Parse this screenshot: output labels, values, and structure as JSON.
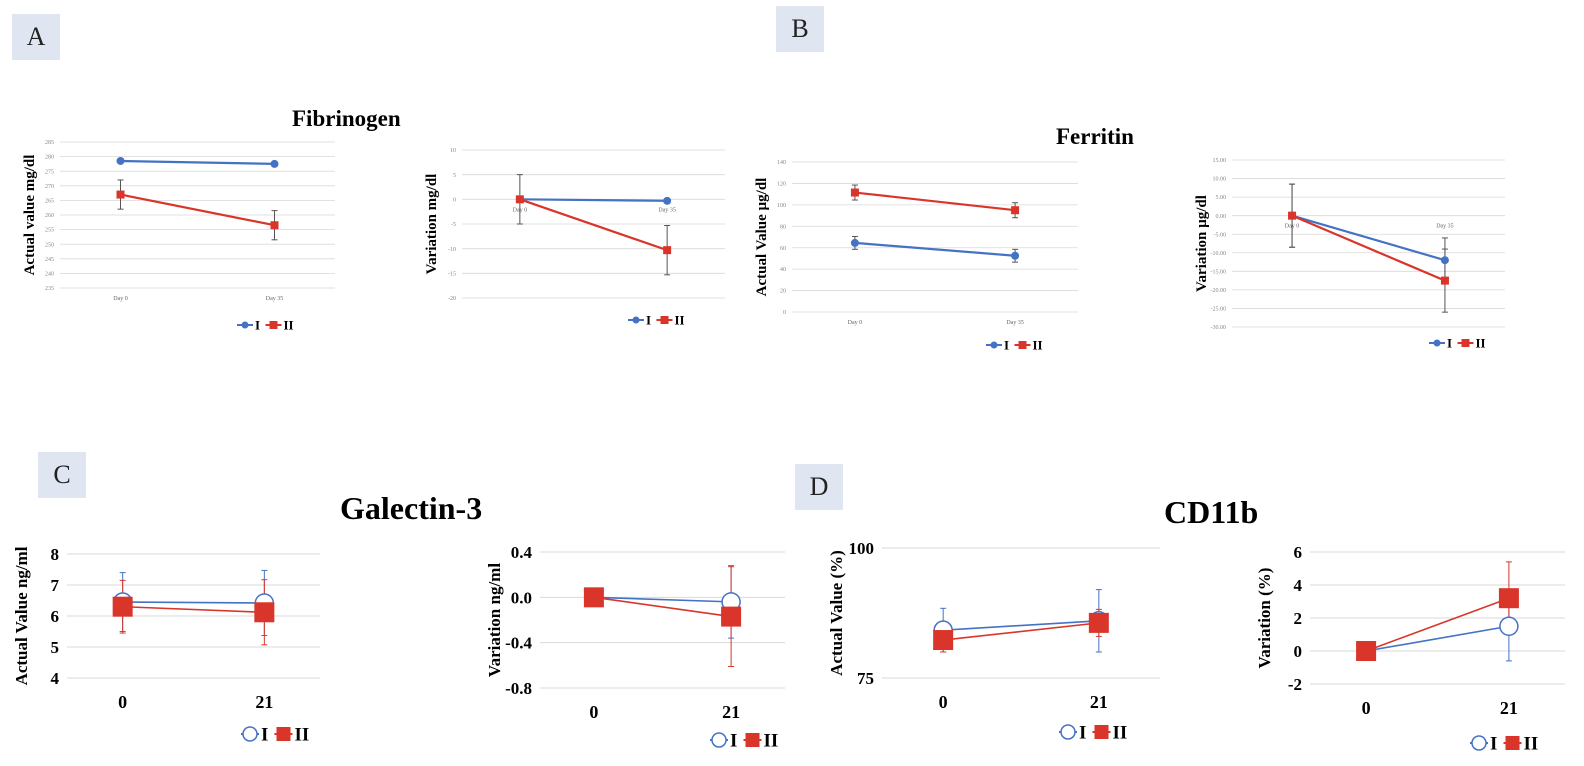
{
  "panels": {
    "A": "A",
    "B": "B",
    "C": "C",
    "D": "D"
  },
  "titles": {
    "A": "Fibrinogen",
    "B": "Ferritin",
    "C": "Galectin-3",
    "D": "CD11b"
  },
  "colors": {
    "I": "#4472c4",
    "II": "#d9352a",
    "grid": "#d9d9d9",
    "panel_bg": "#dfe6f1"
  },
  "chart_data": [
    {
      "id": "fibrinogen-actual",
      "panel": "A",
      "type": "line",
      "ylabel": "Actual value mg/dl",
      "ylim": [
        235,
        285
      ],
      "yticks": [
        235,
        240,
        245,
        250,
        255,
        260,
        265,
        270,
        275,
        280,
        285
      ],
      "ytick_labels": [
        "235",
        "240",
        "245",
        "250",
        "255",
        "260",
        "265",
        "270",
        "275",
        "280",
        "285"
      ],
      "categories": [
        "Day 0",
        "Day 35"
      ],
      "marker": "filled-small",
      "series": [
        {
          "name": "I",
          "values": [
            278.5,
            277.5
          ],
          "err": [
            0,
            0
          ]
        },
        {
          "name": "II",
          "values": [
            267.0,
            256.5
          ],
          "err": [
            5,
            5
          ]
        }
      ],
      "legend": [
        "I",
        "II"
      ],
      "legend_position": "bottom-right"
    },
    {
      "id": "fibrinogen-variation",
      "panel": "A",
      "type": "line",
      "ylabel": "Variation mg/dl",
      "ylim": [
        -20,
        10
      ],
      "yticks": [
        -20,
        -15,
        -10,
        -5,
        0,
        5,
        10
      ],
      "ytick_labels": [
        "-20",
        "-15",
        "-10",
        "-5",
        "0",
        "5",
        "10"
      ],
      "categories": [
        "Day 0",
        "Day 35"
      ],
      "marker": "filled-small",
      "series": [
        {
          "name": "I",
          "values": [
            0,
            -0.3
          ],
          "err": [
            0,
            0
          ]
        },
        {
          "name": "II",
          "values": [
            0,
            -10.3
          ],
          "err": [
            5,
            5
          ]
        }
      ],
      "legend": [
        "I",
        "II"
      ],
      "legend_position": "bottom-right"
    },
    {
      "id": "ferritin-actual",
      "panel": "B",
      "type": "line",
      "ylabel": "Actual Value µg/dl",
      "ylim": [
        0,
        140
      ],
      "yticks": [
        0,
        20,
        40,
        60,
        80,
        100,
        120,
        140
      ],
      "ytick_labels": [
        "0",
        "20",
        "40",
        "60",
        "80",
        "100",
        "120",
        "140"
      ],
      "categories": [
        "Day 0",
        "Day 35"
      ],
      "marker": "filled-small",
      "series": [
        {
          "name": "I",
          "values": [
            64.5,
            52.5
          ],
          "err": [
            6,
            6
          ]
        },
        {
          "name": "II",
          "values": [
            111.5,
            95.0
          ],
          "err": [
            7,
            7
          ]
        }
      ],
      "legend": [
        "I",
        "II"
      ],
      "legend_position": "bottom-right"
    },
    {
      "id": "ferritin-variation",
      "panel": "B",
      "type": "line",
      "ylabel": "Variation µg/dl",
      "ylim": [
        -30,
        15
      ],
      "yticks": [
        -30,
        -25,
        -20,
        -15,
        -10,
        -5,
        0,
        5,
        10,
        15
      ],
      "ytick_labels": [
        "-30.00",
        "-25.00",
        "-20.00",
        "-15.00",
        "-10.00",
        "-5.00",
        "0.00",
        "5.00",
        "10.00",
        "15.00"
      ],
      "categories": [
        "Day 0",
        "Day 35"
      ],
      "marker": "filled-small",
      "series": [
        {
          "name": "I",
          "values": [
            0,
            -12.0
          ],
          "err": [
            8.5,
            6
          ]
        },
        {
          "name": "II",
          "values": [
            0,
            -17.5
          ],
          "err": [
            8.5,
            8.5
          ]
        }
      ],
      "legend": [
        "I",
        "II"
      ],
      "legend_position": "bottom-right"
    },
    {
      "id": "galectin-actual",
      "panel": "C",
      "type": "line",
      "ylabel": "Actual Value ng/ml",
      "ylim": [
        4,
        8
      ],
      "yticks": [
        4,
        5,
        6,
        7,
        8
      ],
      "ytick_labels": [
        "4",
        "5",
        "6",
        "7",
        "8"
      ],
      "categories": [
        "0",
        "21"
      ],
      "marker": "large",
      "series": [
        {
          "name": "I",
          "values": [
            6.45,
            6.42
          ],
          "err": [
            0.95,
            1.05
          ]
        },
        {
          "name": "II",
          "values": [
            6.3,
            6.12
          ],
          "err": [
            0.85,
            1.05
          ]
        }
      ],
      "legend": [
        "I",
        "II"
      ],
      "legend_position": "bottom-right"
    },
    {
      "id": "galectin-variation",
      "panel": "C",
      "type": "line",
      "ylabel": "Variation ng/ml",
      "ylim": [
        -0.8,
        0.4
      ],
      "yticks": [
        -0.8,
        -0.4,
        0.0,
        0.4
      ],
      "ytick_labels": [
        "-0.8",
        "-0.4",
        "0.0",
        "0.4"
      ],
      "categories": [
        "0",
        "21"
      ],
      "marker": "large",
      "series": [
        {
          "name": "I",
          "values": [
            0,
            -0.04
          ],
          "err": [
            0,
            0.32
          ]
        },
        {
          "name": "II",
          "values": [
            0,
            -0.17
          ],
          "err": [
            0,
            0.44
          ]
        }
      ],
      "legend": [
        "I",
        "II"
      ],
      "legend_position": "bottom-right"
    },
    {
      "id": "cd11b-actual",
      "panel": "D",
      "type": "line",
      "ylabel": "Actual Value (%)",
      "ylim": [
        75,
        100
      ],
      "yticks": [
        75,
        100
      ],
      "ytick_labels": [
        "75",
        "100"
      ],
      "categories": [
        "0",
        "21"
      ],
      "marker": "large",
      "series": [
        {
          "name": "I",
          "values": [
            84.2,
            86.0
          ],
          "err": [
            4.2,
            6.0
          ]
        },
        {
          "name": "II",
          "values": [
            82.3,
            85.6
          ],
          "err": [
            2.3,
            2.6
          ]
        }
      ],
      "legend": [
        "I",
        "II"
      ],
      "legend_position": "bottom-right"
    },
    {
      "id": "cd11b-variation",
      "panel": "D",
      "type": "line",
      "ylabel": "Variation (%)",
      "ylim": [
        -2,
        6
      ],
      "yticks": [
        -2,
        0,
        2,
        4,
        6
      ],
      "ytick_labels": [
        "-2",
        "0",
        "2",
        "4",
        "6"
      ],
      "categories": [
        "0",
        "21"
      ],
      "marker": "large",
      "series": [
        {
          "name": "I",
          "values": [
            0,
            1.5
          ],
          "err": [
            0,
            2.1
          ]
        },
        {
          "name": "II",
          "values": [
            0,
            3.2
          ],
          "err": [
            0,
            2.2
          ]
        }
      ],
      "legend": [
        "I",
        "II"
      ],
      "legend_position": "bottom-right"
    }
  ]
}
